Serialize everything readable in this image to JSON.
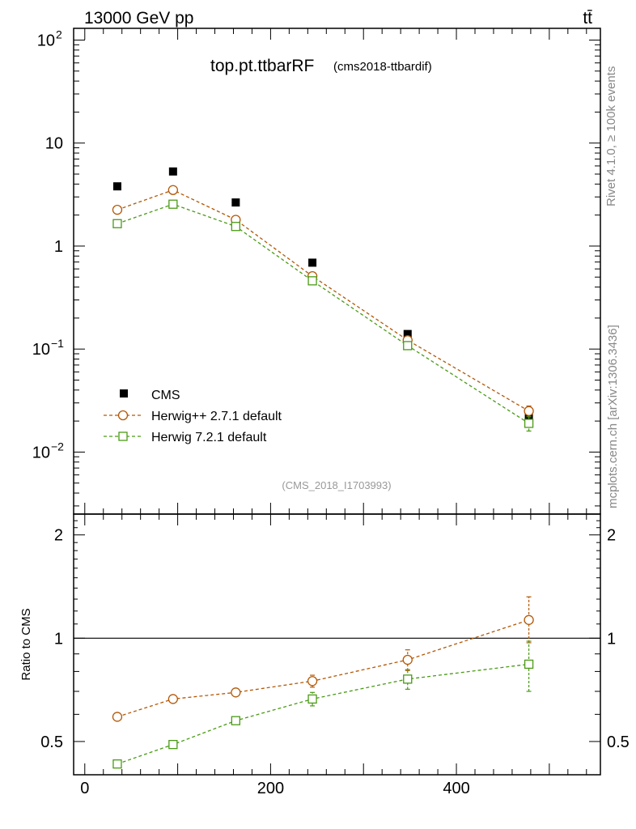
{
  "header": {
    "energy_label": "13000 GeV pp",
    "process_label": "tt̄"
  },
  "side_labels": {
    "rivet": "Rivet 4.1.0, ≥ 100k events",
    "mcplots": "mcplots.cern.ch [arXiv:1306.3436]"
  },
  "chart_data": [
    {
      "type": "scatter",
      "panel": "main",
      "title": "top.pt.ttbarRF",
      "subtitle": "(cms2018-ttbardif)",
      "watermark": "(CMS_2018_I1703993)",
      "yscale": "log",
      "ylim": [
        0.0025,
        130
      ],
      "xlim": [
        -12,
        555
      ],
      "y_ticks": [
        {
          "v": 0.01,
          "base": "10",
          "exp": "−2"
        },
        {
          "v": 0.1,
          "base": "10",
          "exp": "−1"
        },
        {
          "v": 1,
          "base": "1",
          "exp": ""
        },
        {
          "v": 10,
          "base": "10",
          "exp": ""
        },
        {
          "v": 100,
          "base": "10",
          "exp": "2"
        }
      ],
      "legend_position": "bottom-left",
      "series": [
        {
          "name": "CMS",
          "color": "#000000",
          "marker": "filled-square",
          "x": [
            35,
            95,
            162.5,
            245,
            347.5,
            478
          ],
          "y": [
            3.8,
            5.3,
            2.65,
            0.69,
            0.14,
            0.022
          ]
        },
        {
          "name": "Herwig++ 2.7.1 default",
          "color": "#b35806",
          "marker": "open-circle",
          "x": [
            35,
            95,
            162.5,
            245,
            347.5,
            478
          ],
          "y": [
            2.25,
            3.5,
            1.8,
            0.51,
            0.122,
            0.025
          ],
          "err_low": [
            0,
            0,
            0,
            0,
            0.004,
            0.003
          ],
          "err_high": [
            0,
            0,
            0,
            0,
            0.004,
            0.003
          ]
        },
        {
          "name": "Herwig 7.2.1 default",
          "color": "#4a9a15",
          "marker": "open-square",
          "x": [
            35,
            95,
            162.5,
            245,
            347.5,
            478
          ],
          "y": [
            1.65,
            2.55,
            1.55,
            0.46,
            0.108,
            0.019
          ],
          "err_low": [
            0,
            0,
            0,
            0,
            0.004,
            0.003
          ],
          "err_high": [
            0,
            0,
            0,
            0,
            0.004,
            0.003
          ]
        }
      ]
    },
    {
      "type": "scatter",
      "panel": "ratio",
      "ylabel": "Ratio to CMS",
      "ylim": [
        0.4,
        2.3
      ],
      "xlim": [
        -12,
        555
      ],
      "reference_line": 1,
      "y_ticks": [
        0.5,
        1,
        2
      ],
      "x_ticks": [
        0,
        200,
        400
      ],
      "series": [
        {
          "name": "Herwig++ 2.7.1 default",
          "color": "#b35806",
          "marker": "open-circle",
          "x": [
            35,
            95,
            162.5,
            245,
            347.5,
            478
          ],
          "y": [
            0.59,
            0.665,
            0.695,
            0.75,
            0.865,
            1.13
          ],
          "err_low": [
            0,
            0,
            0,
            0.03,
            0.06,
            0.16
          ],
          "err_high": [
            0,
            0,
            0,
            0.03,
            0.06,
            0.19
          ]
        },
        {
          "name": "Herwig 7.2.1 default",
          "color": "#4a9a15",
          "marker": "open-square",
          "x": [
            35,
            95,
            162.5,
            245,
            347.5,
            478
          ],
          "y": [
            0.43,
            0.49,
            0.575,
            0.665,
            0.76,
            0.84
          ],
          "err_low": [
            0,
            0,
            0,
            0.03,
            0.05,
            0.14
          ],
          "err_high": [
            0,
            0,
            0,
            0.03,
            0.05,
            0.14
          ]
        }
      ]
    }
  ]
}
